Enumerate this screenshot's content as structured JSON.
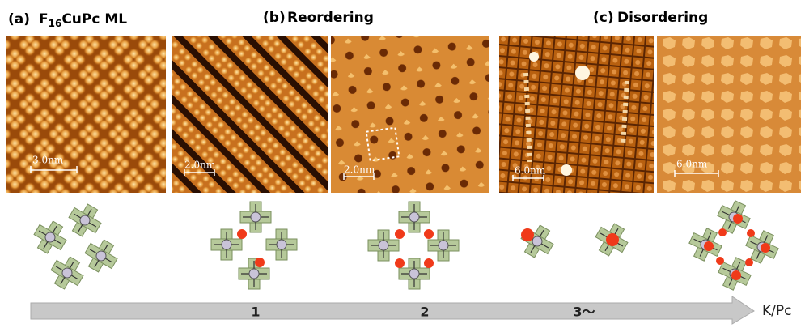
{
  "panels": [
    {
      "label": "(a)",
      "title_parts": [
        "F",
        "16",
        "CuPc ML"
      ]
    },
    {
      "label": "(b)",
      "title": "Reordering"
    },
    {
      "label": "(c)",
      "title": "Disordering"
    }
  ],
  "scale_bars": [
    "3.0nm",
    "2.0nm",
    "2.0nm",
    "6.0nm",
    "6.0nm"
  ],
  "axis": {
    "label": "K/Pc",
    "ticks": [
      "1",
      "2",
      "3～"
    ]
  }
}
